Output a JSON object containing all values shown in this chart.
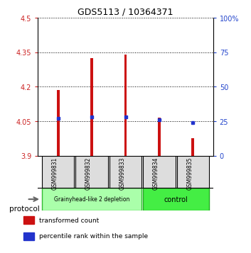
{
  "title": "GDS5113 / 10364371",
  "samples": [
    "GSM999831",
    "GSM999832",
    "GSM999833",
    "GSM999834",
    "GSM999835"
  ],
  "bar_bottoms": [
    3.9,
    3.9,
    3.9,
    3.9,
    3.9
  ],
  "bar_tops": [
    4.185,
    4.325,
    4.34,
    4.065,
    3.975
  ],
  "percentile_ranks": [
    27,
    28,
    28,
    26,
    24
  ],
  "ylim_left": [
    3.9,
    4.5
  ],
  "ylim_right": [
    0,
    100
  ],
  "yticks_left": [
    3.9,
    4.05,
    4.2,
    4.35,
    4.5
  ],
  "yticks_right": [
    0,
    25,
    50,
    75,
    100
  ],
  "ytick_labels_left": [
    "3.9",
    "4.05",
    "4.2",
    "4.35",
    "4.5"
  ],
  "ytick_labels_right": [
    "0",
    "25",
    "50",
    "75",
    "100%"
  ],
  "groups": [
    {
      "label": "Grainyhead-like 2 depletion",
      "samples": [
        0,
        1,
        2
      ],
      "color": "#aaffaa",
      "border_color": "#33bb33"
    },
    {
      "label": "control",
      "samples": [
        3,
        4
      ],
      "color": "#44ee44",
      "border_color": "#22aa22"
    }
  ],
  "bar_color": "#cc1111",
  "percentile_color": "#2233cc",
  "grid_color": "#000000",
  "background_color": "#ffffff",
  "protocol_label": "protocol",
  "left_tick_color": "#cc2222",
  "right_tick_color": "#2244cc",
  "legend_items": [
    {
      "label": "transformed count",
      "color": "#cc1111"
    },
    {
      "label": "percentile rank within the sample",
      "color": "#2233cc"
    }
  ]
}
